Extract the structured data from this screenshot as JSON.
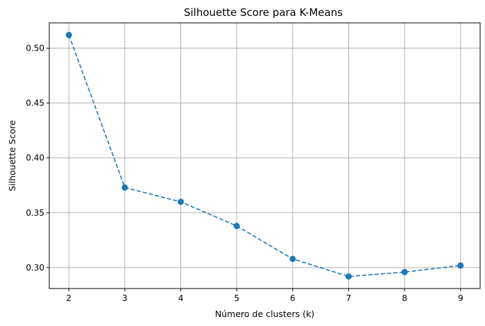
{
  "chart_data": {
    "type": "line",
    "title": "Silhouette Score para K-Means",
    "xlabel": "Número de clusters (k)",
    "ylabel": "Silhouette Score",
    "x": [
      2,
      3,
      4,
      5,
      6,
      7,
      8,
      9
    ],
    "x_ticks": [
      "2",
      "3",
      "4",
      "5",
      "6",
      "7",
      "8",
      "9"
    ],
    "y_ticks": [
      "0.30",
      "0.35",
      "0.40",
      "0.45",
      "0.50"
    ],
    "series": [
      {
        "values": [
          0.512,
          0.373,
          0.36,
          0.338,
          0.308,
          0.292,
          0.296,
          0.302
        ],
        "color": "#1f77b4",
        "line_style": "dashed",
        "marker": "circle"
      }
    ],
    "xlim": [
      1.65,
      9.35
    ],
    "ylim": [
      0.281,
      0.523
    ],
    "grid": true
  }
}
